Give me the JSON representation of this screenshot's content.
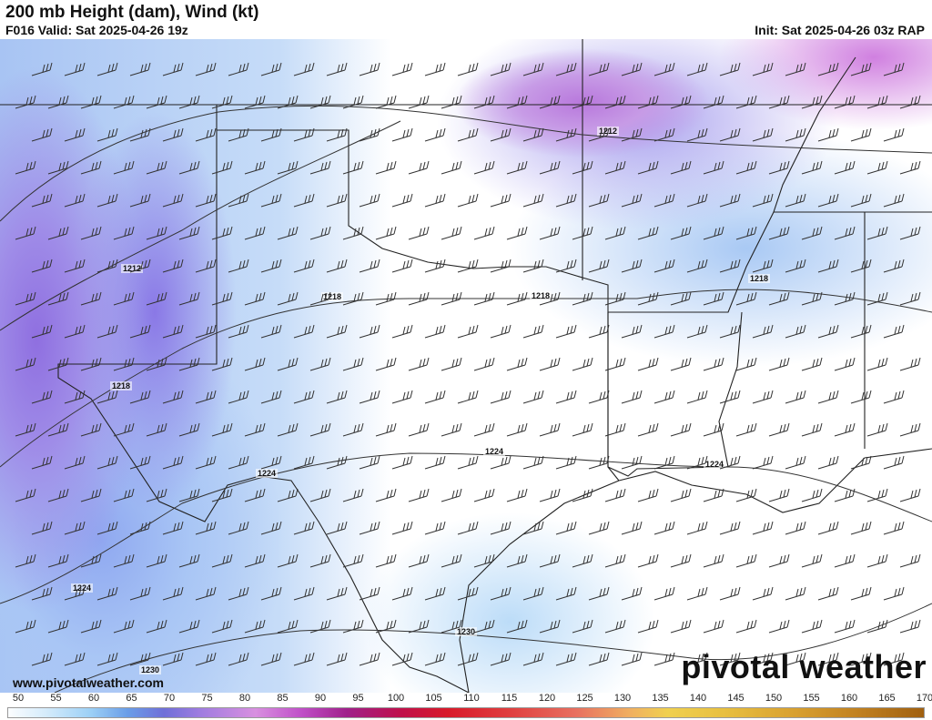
{
  "header": {
    "title": "200 mb Height (dam), Wind (kt)",
    "valid": "F016 Valid: Sat 2025-04-26 19z",
    "init": "Init: Sat 2025-04-26 03z RAP"
  },
  "contour_labels": [
    {
      "text": "1212",
      "lon": -104.5,
      "lat": 36.3
    },
    {
      "text": "1212",
      "lon": -95.0,
      "lat": 39.0
    },
    {
      "text": "1218",
      "lon": -100.5,
      "lat": 35.6
    },
    {
      "text": "1218",
      "lon": -96.5,
      "lat": 35.6
    },
    {
      "text": "1218",
      "lon": -91.8,
      "lat": 36.0
    },
    {
      "text": "1218",
      "lon": -104.7,
      "lat": 33.3
    },
    {
      "text": "1224",
      "lon": -105.3,
      "lat": 28.3
    },
    {
      "text": "1224",
      "lon": -101.8,
      "lat": 30.9
    },
    {
      "text": "1224",
      "lon": -97.3,
      "lat": 31.3
    },
    {
      "text": "1224",
      "lon": -92.3,
      "lat": 31.0
    },
    {
      "text": "1230",
      "lon": -97.2,
      "lat": 27.3
    },
    {
      "text": "1230",
      "lon": -103.8,
      "lat": 26.4
    }
  ],
  "footer": {
    "url": "www.pivotalweather.com",
    "logo": "pivotal weather"
  },
  "colorbar": {
    "units": "kt",
    "ticks": [
      "50",
      "55",
      "60",
      "65",
      "70",
      "75",
      "80",
      "85",
      "90",
      "95",
      "100",
      "105",
      "110",
      "115",
      "120",
      "125",
      "130",
      "135",
      "140",
      "145",
      "150",
      "155",
      "160",
      "165",
      "170"
    ],
    "colors": [
      "#fbfdff",
      "#9cd0f6",
      "#6a9ee8",
      "#6f6fd8",
      "#9f7ce0",
      "#d890e0",
      "#a0208a",
      "#d81a2a",
      "#e87060",
      "#f0d050",
      "#d8a030",
      "#a06010"
    ]
  }
}
